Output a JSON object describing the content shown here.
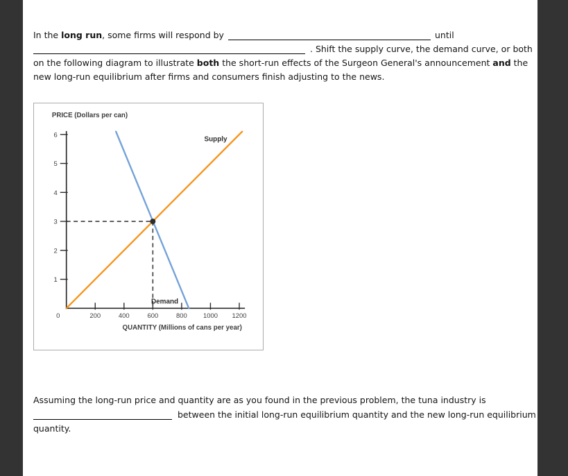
{
  "q1": {
    "l1_pre": "In the ",
    "l1_bold": "long run",
    "l1_mid": ", some firms will respond by",
    "l1_post": "until",
    "l2": ". Shift the supply curve, the demand curve, or both",
    "l3_pre": "on the following diagram to illustrate ",
    "l3_bold1": "both",
    "l3_mid": " the short-run effects of the Surgeon General's announcement ",
    "l3_bold2": "and",
    "l3_post": " the",
    "l4": "new long-run equilibrium after firms and consumers finish adjusting to the news."
  },
  "q2": {
    "l1": "Assuming the long-run price and quantity are as you found in the previous problem, the tuna industry is",
    "l2": "between the initial long-run equilibrium quantity and the new long-run equilibrium",
    "l3": "quantity."
  },
  "chart_data": {
    "type": "line",
    "ylabel": "PRICE (Dollars per can)",
    "xlabel": "QUANTITY (Millions of cans per year)",
    "xlim": [
      0,
      1240
    ],
    "ylim": [
      0,
      6.1
    ],
    "x_ticks": [
      0,
      200,
      400,
      600,
      800,
      1000,
      1200
    ],
    "y_ticks": [
      1,
      2,
      3,
      4,
      5,
      6
    ],
    "grid": false,
    "series": [
      {
        "name": "Supply",
        "color": "#f7941e",
        "points": [
          [
            0,
            0
          ],
          [
            1220,
            6.1
          ]
        ]
      },
      {
        "name": "Demand",
        "color": "#74a2d8",
        "points": [
          [
            344,
            6.1
          ],
          [
            850,
            0
          ]
        ]
      }
    ],
    "equilibrium": {
      "quantity": 600,
      "price": 3
    },
    "guides": {
      "style": "dashed",
      "color": "#3a3a3a"
    },
    "dot_color": "#2d2d2d"
  }
}
